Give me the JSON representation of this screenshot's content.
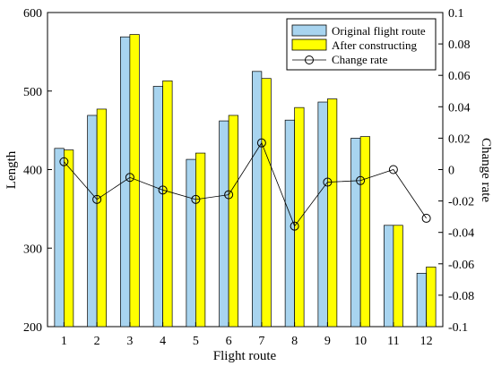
{
  "chart_data": {
    "type": "bar",
    "xlabel": "Flight route",
    "ylabel": "Length",
    "y2label": "Change rate",
    "categories": [
      "1",
      "2",
      "3",
      "4",
      "5",
      "6",
      "7",
      "8",
      "9",
      "10",
      "11",
      "12"
    ],
    "ylim": [
      200,
      600
    ],
    "yticks": [
      "200",
      "300",
      "400",
      "500",
      "600"
    ],
    "y2lim": [
      -0.1,
      0.1
    ],
    "y2ticks": [
      "-0.1",
      "-0.08",
      "-0.06",
      "-0.04",
      "-0.02",
      "0",
      "0.02",
      "0.04",
      "0.06",
      "0.08",
      "0.1"
    ],
    "legend_position": "top-right",
    "series": [
      {
        "name": "Original flight route",
        "axis": "left",
        "kind": "bar",
        "color": "#a8d4ef",
        "values": [
          427,
          469,
          569,
          506,
          413,
          462,
          525,
          463,
          486,
          440,
          329,
          268
        ]
      },
      {
        "name": "After constructing",
        "axis": "left",
        "kind": "bar",
        "color": "#ffff00",
        "values": [
          425,
          477,
          572,
          513,
          421,
          469,
          516,
          479,
          490,
          442,
          329,
          276
        ]
      },
      {
        "name": "Change rate",
        "axis": "right",
        "kind": "line-marker",
        "color": "#000000",
        "values": [
          0.005,
          -0.019,
          -0.005,
          -0.013,
          -0.019,
          -0.016,
          0.017,
          -0.036,
          -0.008,
          -0.007,
          0.0,
          -0.031
        ]
      }
    ]
  }
}
